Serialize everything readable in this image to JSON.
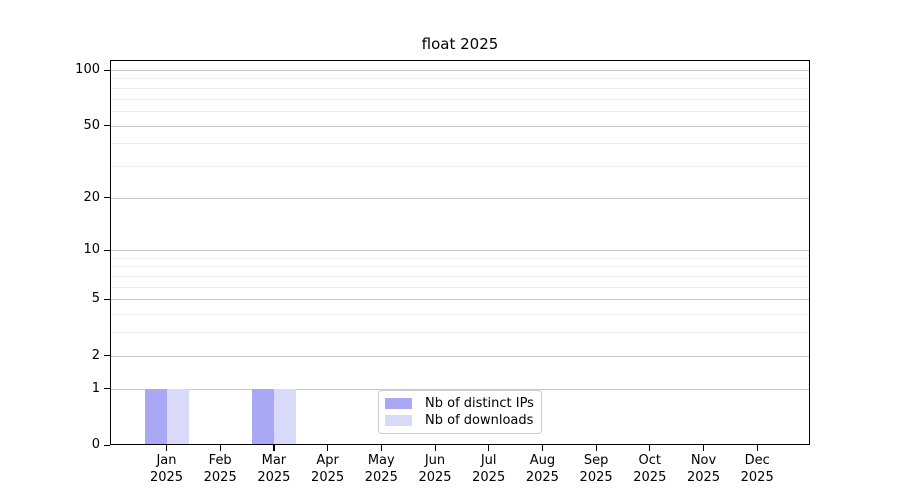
{
  "title": "float 2025",
  "chart_data": {
    "type": "bar",
    "title": "float 2025",
    "categories": [
      "Jan",
      "Feb",
      "Mar",
      "Apr",
      "May",
      "Jun",
      "Jul",
      "Aug",
      "Sep",
      "Oct",
      "Nov",
      "Dec"
    ],
    "category_year": "2025",
    "series": [
      {
        "name": "Nb of distinct IPs",
        "color": "#a8a8f4",
        "values": [
          1,
          0,
          1,
          0,
          0,
          0,
          0,
          0,
          0,
          0,
          0,
          0
        ]
      },
      {
        "name": "Nb of downloads",
        "color": "#d9d9fa",
        "values": [
          1,
          0,
          1,
          0,
          0,
          0,
          0,
          0,
          0,
          0,
          0,
          0
        ]
      }
    ],
    "xlabel": "",
    "ylabel": "",
    "yscale": "log1p",
    "ylim": [
      0,
      113
    ],
    "yticks_major": [
      0,
      1,
      2,
      5,
      10,
      20,
      50,
      100
    ],
    "yticks_minor": [
      3,
      4,
      6,
      7,
      8,
      9,
      30,
      40,
      60,
      70,
      80,
      90
    ],
    "grid": true,
    "legend": {
      "position": "lower-center-inside",
      "entries": [
        "Nb of distinct IPs",
        "Nb of downloads"
      ]
    }
  },
  "colors": {
    "background": "#ffffff",
    "bar_distinct_ips": "#a8a8f4",
    "bar_downloads": "#d9d9fa",
    "grid_major": "#c8c8c8",
    "grid_minor": "#eeeeee",
    "axis": "#000000",
    "legend_border": "#cccccc"
  }
}
